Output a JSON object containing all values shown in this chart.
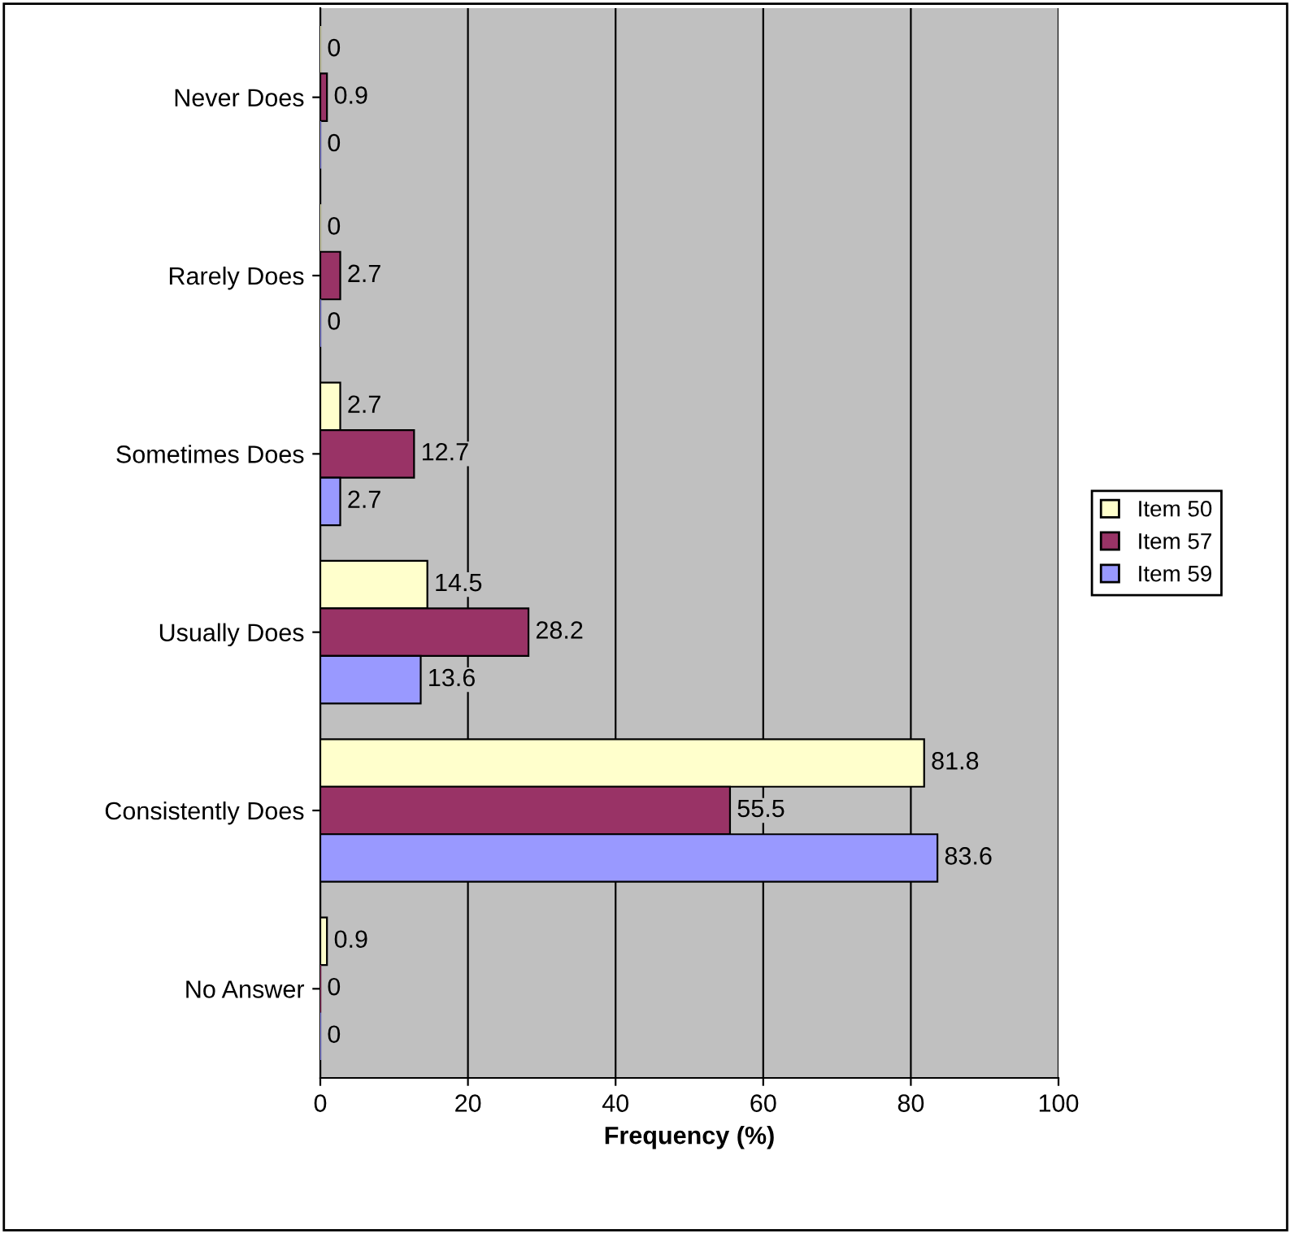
{
  "chart_data": {
    "type": "bar",
    "orientation": "horizontal",
    "categories": [
      "Never Does",
      "Rarely Does",
      "Sometimes Does",
      "Usually Does",
      "Consistently Does",
      "No Answer"
    ],
    "series": [
      {
        "name": "Item 50",
        "color": "#ffffcc",
        "values": [
          0,
          0,
          2.7,
          14.5,
          81.8,
          0.9
        ]
      },
      {
        "name": "Item 57",
        "color": "#993366",
        "values": [
          0.9,
          2.7,
          12.7,
          28.2,
          55.5,
          0
        ]
      },
      {
        "name": "Item 59",
        "color": "#9999ff",
        "values": [
          0,
          0,
          2.7,
          13.6,
          83.6,
          0
        ]
      }
    ],
    "xlabel": "Frequency (%)",
    "xlim": [
      0,
      100
    ],
    "xticks": [
      0,
      20,
      40,
      60,
      80,
      100
    ],
    "grid": "x",
    "legend": "right",
    "data_labels": true
  }
}
